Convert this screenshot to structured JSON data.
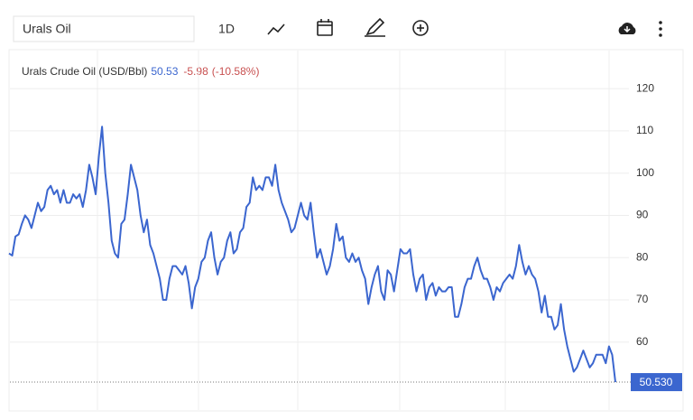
{
  "search": "Urals Oil",
  "period": "1D",
  "chart_data": {
    "type": "line",
    "legend": {
      "name": "Urals Crude Oil (USD/Bbl)",
      "last": 50.53,
      "change": -5.98,
      "change_pct": {
        "value": -10.58,
        "label": "(-10.58%)"
      }
    },
    "price": {
      "value": 50.53,
      "label": "50.530"
    },
    "ylim": [
      43.7,
      130.3
    ],
    "yticks": [
      60,
      70,
      80,
      90,
      100,
      110,
      120
    ],
    "grid": true,
    "series": [
      {
        "name": "Urals Crude Oil (USD/Bbl)",
        "color": "#3b66cf",
        "values": [
          81,
          80.5,
          85,
          85.5,
          88,
          90,
          89,
          87,
          90,
          93,
          91,
          92,
          96,
          97,
          95,
          96,
          93,
          96,
          93,
          93,
          95,
          94,
          95,
          92,
          96,
          102,
          99,
          95,
          104,
          111,
          100,
          93,
          84,
          81,
          80,
          88,
          89,
          95,
          102,
          99,
          96,
          90,
          86,
          89,
          83,
          81,
          78,
          75,
          70,
          70,
          75,
          78,
          78,
          77,
          76,
          78,
          74,
          68,
          73,
          75,
          79,
          80,
          84,
          86,
          80,
          76,
          79,
          80,
          84,
          86,
          81,
          82,
          86,
          87,
          92,
          93,
          99,
          96,
          97,
          96,
          99,
          99,
          97,
          102,
          96,
          93,
          91,
          89,
          86,
          87,
          90,
          93,
          90,
          89,
          93,
          86,
          80,
          82,
          79,
          76,
          78,
          82,
          88,
          84,
          85,
          80,
          79,
          81,
          79,
          80,
          77,
          75,
          69,
          73,
          76,
          78,
          72,
          70,
          77,
          76,
          72,
          77,
          82,
          81,
          81,
          82,
          76,
          72,
          75,
          76,
          70,
          73,
          74,
          71,
          73,
          72,
          72,
          73,
          73,
          66,
          66,
          69,
          73,
          75,
          75,
          78,
          80,
          77,
          75,
          75,
          73,
          70,
          73,
          72,
          74,
          75,
          76,
          75,
          78,
          83,
          79,
          76,
          78,
          76,
          75,
          72,
          67,
          71,
          66,
          66,
          63,
          64,
          69,
          63,
          59,
          56,
          53,
          54,
          56,
          58,
          56,
          54,
          55,
          57,
          57,
          57,
          55,
          59,
          57,
          50.53
        ]
      }
    ]
  }
}
